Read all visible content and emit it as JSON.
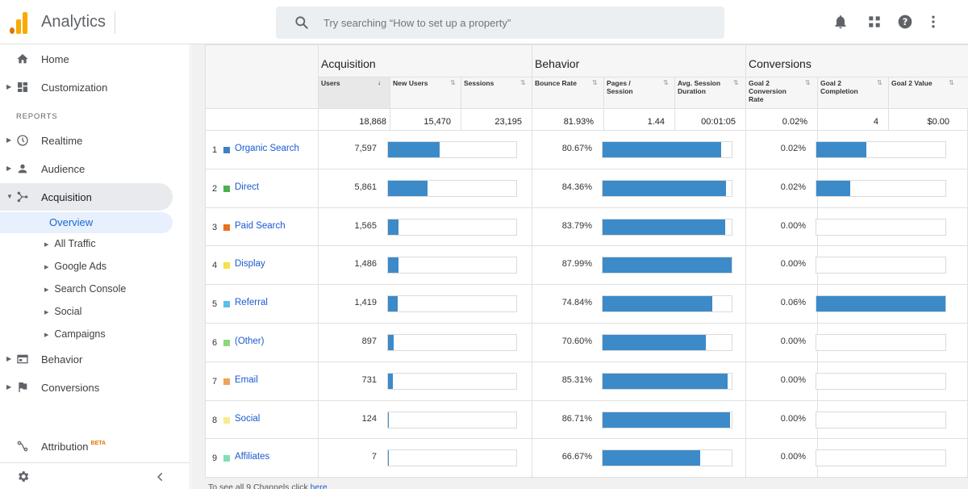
{
  "app": {
    "title": "Analytics"
  },
  "search": {
    "placeholder": "Try searching “How to set up a property”"
  },
  "toolbar": {
    "icons": [
      "bell-icon",
      "apps-grid-icon",
      "help-icon",
      "more-vert-icon"
    ]
  },
  "sidebar": {
    "home": "Home",
    "customization": "Customization",
    "reports_header": "REPORTS",
    "realtime": "Realtime",
    "audience": "Audience",
    "acquisition": "Acquisition",
    "overview": "Overview",
    "sub": [
      "All Traffic",
      "Google Ads",
      "Search Console",
      "Social",
      "Campaigns"
    ],
    "behavior": "Behavior",
    "conversions": "Conversions",
    "attribution": "Attribution",
    "beta": "BETA"
  },
  "table": {
    "groups": {
      "acquisition": "Acquisition",
      "behavior": "Behavior",
      "conversions": "Conversions"
    },
    "columns": {
      "users": "Users",
      "new_users": "New Users",
      "sessions": "Sessions",
      "bounce_rate": "Bounce Rate",
      "pages_session": "Pages / Session",
      "avg_session": "Avg. Session Duration",
      "goal2_rate": "Goal 2 Conversion Rate",
      "goal2_completion": "Goal 2 Completion",
      "goal2_value": "Goal 2 Value"
    },
    "totals": {
      "users": "18,868",
      "new_users": "15,470",
      "sessions": "23,195",
      "bounce_rate": "81.93%",
      "pages_session": "1.44",
      "avg_session": "00:01:05",
      "goal2_rate": "0.02%",
      "goal2_completion": "4",
      "goal2_value": "$0.00"
    },
    "rows": [
      {
        "n": "1",
        "channel": "Organic Search",
        "color": "#3b82c4",
        "users": "7,597",
        "users_frac": 0.4,
        "bounce": "80.67%",
        "bounce_frac": 0.917,
        "conv": "0.02%",
        "conv_frac": 0.39
      },
      {
        "n": "2",
        "channel": "Direct",
        "color": "#4caf50",
        "users": "5,861",
        "users_frac": 0.31,
        "bounce": "84.36%",
        "bounce_frac": 0.959,
        "conv": "0.02%",
        "conv_frac": 0.26
      },
      {
        "n": "3",
        "channel": "Paid Search",
        "color": "#e8711c",
        "users": "1,565",
        "users_frac": 0.08,
        "bounce": "83.79%",
        "bounce_frac": 0.952,
        "conv": "0.00%",
        "conv_frac": 0
      },
      {
        "n": "4",
        "channel": "Display",
        "color": "#f5e14a",
        "users": "1,486",
        "users_frac": 0.08,
        "bounce": "87.99%",
        "bounce_frac": 1.0,
        "conv": "0.00%",
        "conv_frac": 0
      },
      {
        "n": "5",
        "channel": "Referral",
        "color": "#5bc0eb",
        "users": "1,419",
        "users_frac": 0.075,
        "bounce": "74.84%",
        "bounce_frac": 0.85,
        "conv": "0.06%",
        "conv_frac": 1.0
      },
      {
        "n": "6",
        "channel": "(Other)",
        "color": "#8bd97a",
        "users": "897",
        "users_frac": 0.047,
        "bounce": "70.60%",
        "bounce_frac": 0.8,
        "conv": "0.00%",
        "conv_frac": 0
      },
      {
        "n": "7",
        "channel": "Email",
        "color": "#f0a35a",
        "users": "731",
        "users_frac": 0.039,
        "bounce": "85.31%",
        "bounce_frac": 0.97,
        "conv": "0.00%",
        "conv_frac": 0
      },
      {
        "n": "8",
        "channel": "Social",
        "color": "#f7ec8a",
        "users": "124",
        "users_frac": 0.007,
        "bounce": "86.71%",
        "bounce_frac": 0.985,
        "conv": "0.00%",
        "conv_frac": 0
      },
      {
        "n": "9",
        "channel": "Affiliates",
        "color": "#7fe0b5",
        "users": "7",
        "users_frac": 0.002,
        "bounce": "66.67%",
        "bounce_frac": 0.758,
        "conv": "0.00%",
        "conv_frac": 0
      }
    ],
    "footer": {
      "text": "To see all 9 Channels click ",
      "link": "here"
    }
  }
}
